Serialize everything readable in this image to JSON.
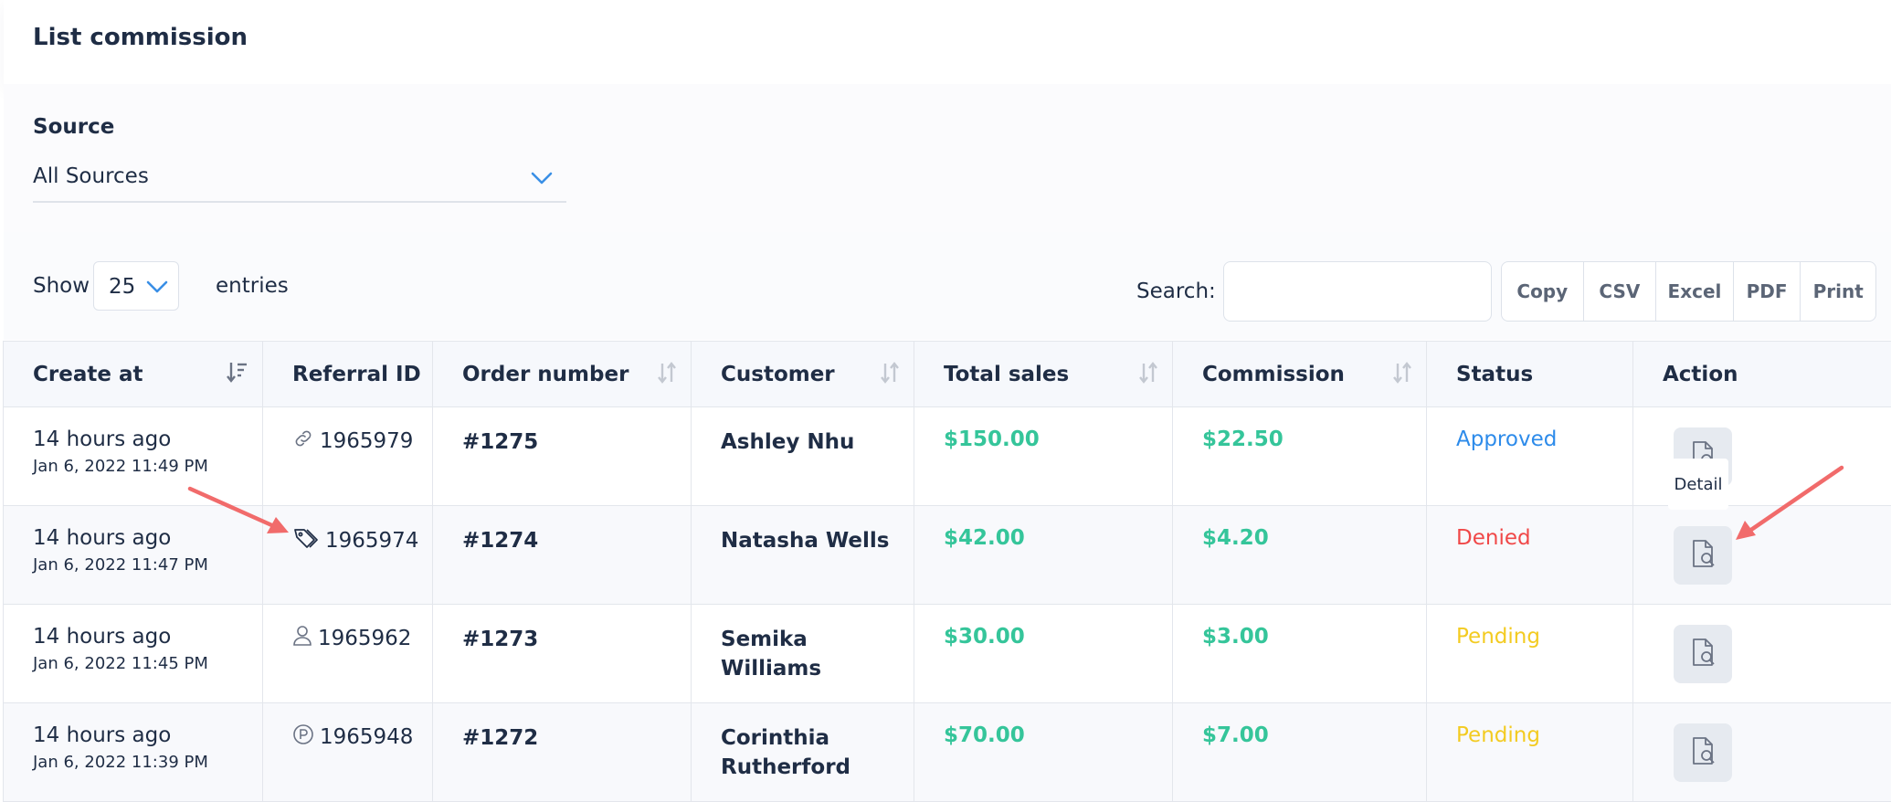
{
  "card": {
    "title": "List commission"
  },
  "filter": {
    "label": "Source",
    "value": "All Sources"
  },
  "table_controls": {
    "show_label": "Show",
    "page_length": "25",
    "entries_label": "entries",
    "search_label": "Search:",
    "search_value": "",
    "export_buttons": [
      "Copy",
      "CSV",
      "Excel",
      "PDF",
      "Print"
    ]
  },
  "columns": [
    "Create at",
    "Referral ID",
    "Order number",
    "Customer",
    "Total sales",
    "Commission",
    "Status",
    "Action"
  ],
  "rows": [
    {
      "relative_time": "14 hours ago",
      "date": "Jan 6, 2022 11:49 PM",
      "ref_icon": "link-icon",
      "referral_id": "1965979",
      "order": "#1275",
      "customer": "Ashley Nhu",
      "total": "$150.00",
      "commission": "$22.50",
      "status": "Approved"
    },
    {
      "relative_time": "14 hours ago",
      "date": "Jan 6, 2022 11:47 PM",
      "ref_icon": "tag-icon",
      "referral_id": "1965974",
      "order": "#1274",
      "customer": "Natasha Wells",
      "total": "$42.00",
      "commission": "$4.20",
      "status": "Denied"
    },
    {
      "relative_time": "14 hours ago",
      "date": "Jan 6, 2022 11:45 PM",
      "ref_icon": "user-icon",
      "referral_id": "1965962",
      "order": "#1273",
      "customer": "Semika Williams",
      "total": "$30.00",
      "commission": "$3.00",
      "status": "Pending"
    },
    {
      "relative_time": "14 hours ago",
      "date": "Jan 6, 2022 11:39 PM",
      "ref_icon": "coupon-p-icon",
      "referral_id": "1965948",
      "order": "#1272",
      "customer": "Corinthia Rutherford",
      "total": "$70.00",
      "commission": "$7.00",
      "status": "Pending"
    }
  ],
  "tooltip": {
    "text": "Detail"
  },
  "colors": {
    "money": "#35c59a",
    "approved": "#2d8bea",
    "denied": "#f04848",
    "pending": "#f3cb21",
    "annotation_arrow": "#f16b6b"
  }
}
